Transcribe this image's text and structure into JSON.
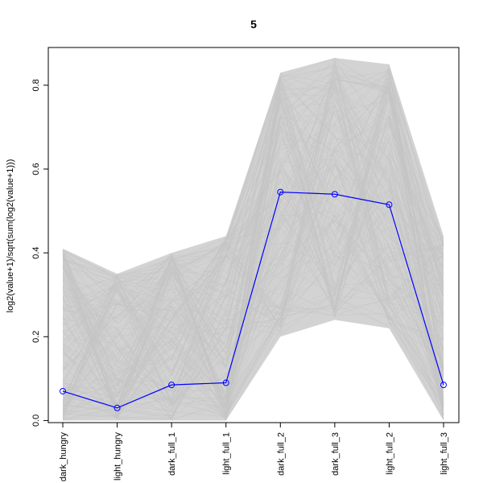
{
  "chart_data": {
    "type": "line",
    "title": "5",
    "xlabel": "",
    "ylabel": "log2(value+1)/sqrt(sum(log2(value+1)))",
    "categories": [
      "dark_hungry",
      "light_hungry",
      "dark_full_1",
      "light_full_1",
      "dark_full_2",
      "dark_full_3",
      "light_full_2",
      "light_full_3"
    ],
    "ylim": [
      -0.005,
      0.89
    ],
    "yticks": [
      0.0,
      0.2,
      0.4,
      0.6,
      0.8
    ],
    "ytick_labels": [
      "0.0",
      "0.2",
      "0.4",
      "0.6",
      "0.8"
    ],
    "grid": false,
    "series": [
      {
        "role": "center",
        "color": "#0000ff",
        "marker": "open-circle",
        "values": [
          0.07,
          0.03,
          0.085,
          0.09,
          0.545,
          0.54,
          0.515,
          0.085
        ]
      }
    ],
    "envelope": {
      "color": "#d3d3d3",
      "min": [
        0.0,
        0.0,
        0.0,
        0.0,
        0.2,
        0.24,
        0.22,
        0.0
      ],
      "max": [
        0.41,
        0.35,
        0.4,
        0.44,
        0.83,
        0.865,
        0.85,
        0.44
      ]
    }
  }
}
